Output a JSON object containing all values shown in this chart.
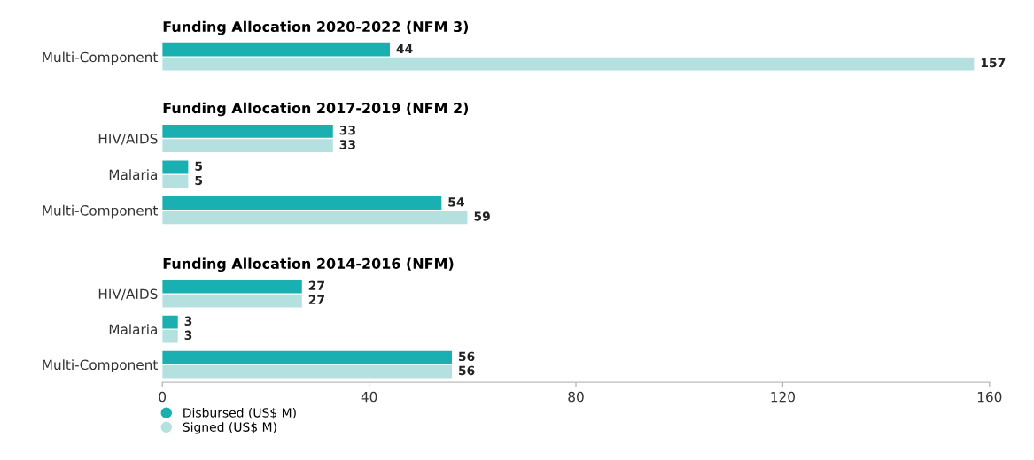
{
  "chart_data": [
    {
      "type": "bar",
      "orientation": "horizontal",
      "title": "Funding Allocation 2020-2022 (NFM 3)",
      "categories": [
        "Multi-Component"
      ],
      "series": [
        {
          "color": "#1aafb0",
          "values": [
            44
          ]
        },
        {
          "color": "#b5e0e0",
          "values": [
            157
          ]
        }
      ],
      "xlim": [
        0,
        160
      ],
      "tick_labels": "y",
      "data_labels": true,
      "grid": false
    },
    {
      "type": "bar",
      "orientation": "horizontal",
      "title": "Funding Allocation 2017-2019 (NFM 2)",
      "categories": [
        "HIV/AIDS",
        "Malaria",
        "Multi-Component"
      ],
      "series": [
        {
          "color": "#1aafb0",
          "values": [
            33,
            5,
            54
          ]
        },
        {
          "color": "#b5e0e0",
          "values": [
            33,
            5,
            59
          ]
        }
      ],
      "xlim": [
        0,
        160
      ],
      "tick_labels": "y",
      "data_labels": true,
      "grid": false
    },
    {
      "type": "bar",
      "orientation": "horizontal",
      "title": "Funding Allocation 2014-2016 (NFM)",
      "categories": [
        "HIV/AIDS",
        "Malaria",
        "Multi-Component"
      ],
      "series": [
        {
          "name": "Disbursed (US$ M)",
          "color": "#1aafb0",
          "values": [
            27,
            3,
            56
          ]
        },
        {
          "name": "Signed (US$ M)",
          "color": "#b5e0e0",
          "values": [
            27,
            3,
            56
          ]
        }
      ],
      "xlim": [
        0,
        160
      ],
      "xticks": [
        0,
        40,
        80,
        120,
        160
      ],
      "data_labels": true,
      "grid": false,
      "legend": "bottom left"
    }
  ]
}
